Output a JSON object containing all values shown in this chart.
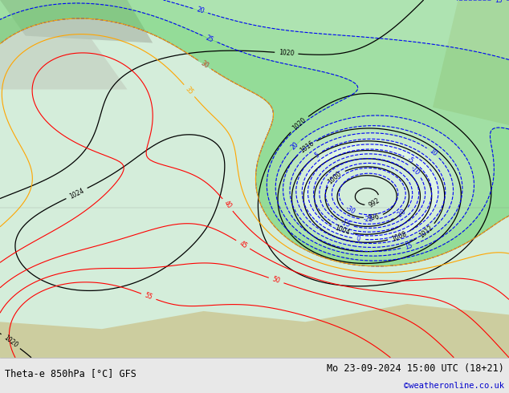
{
  "title_left": "Theta-e 850hPa [°C] GFS",
  "title_right": "Mo 23-09-2024 15:00 UTC (18+21)",
  "credit": "©weatheronline.co.uk",
  "bg_color": "#e8e8e8",
  "map_bg_color": "#d4edda",
  "figsize": [
    6.34,
    4.9
  ],
  "dpi": 100,
  "bottom_bar_color": "#f0f0f0",
  "bottom_bar_height": 0.09,
  "title_fontsize": 8.5,
  "credit_fontsize": 7.5,
  "credit_color": "#0000cc"
}
